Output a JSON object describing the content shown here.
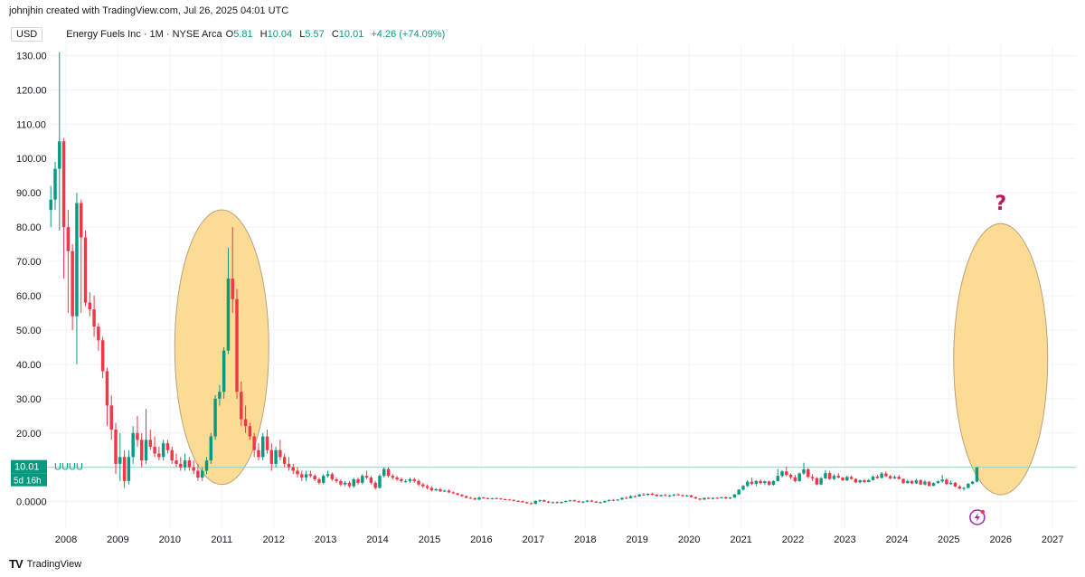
{
  "header": {
    "credit": "johnjhin created with TradingView.com, Jul 26, 2025 04:01 UTC"
  },
  "legend": {
    "currency": "USD",
    "symbol": "Energy Fuels Inc · 1M · NYSE Arca",
    "open_label": "O",
    "open": "5.81",
    "high_label": "H",
    "high": "10.04",
    "low_label": "L",
    "low": "5.57",
    "close_label": "C",
    "close": "10.01",
    "change": "+4.26 (+74.09%)"
  },
  "price_tag": {
    "value": "10.01",
    "ticker": "UUUU",
    "countdown": "5d 16h"
  },
  "annotations": {
    "question_mark": "?"
  },
  "footer": {
    "brand": "TradingView",
    "logo_icon": "tradingview-logo-icon"
  },
  "colors": {
    "up": "#089981",
    "down": "#f23645",
    "highlight": "#fbd27a",
    "question": "#c2185b",
    "lightning": "#9c27b0"
  },
  "chart_data": {
    "type": "candlestick",
    "interval": "1M",
    "y_tick_labels": [
      "0.0000",
      "10.00",
      "20.00",
      "30.00",
      "40.00",
      "50.00",
      "60.00",
      "70.00",
      "80.00",
      "90.00",
      "100.00",
      "110.00",
      "120.00",
      "130.00"
    ],
    "ylim": [
      -8,
      133
    ],
    "x_tick_labels": [
      "2008",
      "2009",
      "2010",
      "2011",
      "2012",
      "2013",
      "2014",
      "2015",
      "2016",
      "2017",
      "2018",
      "2019",
      "2020",
      "2021",
      "2022",
      "2023",
      "2024",
      "2025",
      "2026",
      "2027"
    ],
    "xlim": [
      2007.6,
      2027.45
    ],
    "last_price": 10.01,
    "highlights": [
      {
        "x_center": 2011.0,
        "y_low": 5,
        "y_high": 85
      },
      {
        "x_center": 2026.0,
        "y_low": 2,
        "y_high": 81
      }
    ],
    "candles": [
      [
        "2007-09",
        85,
        92,
        80,
        88
      ],
      [
        "2007-10",
        88,
        99,
        85,
        97
      ],
      [
        "2007-11",
        97,
        131,
        79,
        105
      ],
      [
        "2007-12",
        105,
        106,
        65,
        80
      ],
      [
        "2008-01",
        80,
        85,
        55,
        73
      ],
      [
        "2008-02",
        73,
        75,
        50,
        54
      ],
      [
        "2008-03",
        54,
        90,
        40,
        87
      ],
      [
        "2008-04",
        87,
        88,
        55,
        77
      ],
      [
        "2008-05",
        77,
        79,
        57,
        58
      ],
      [
        "2008-06",
        58,
        61,
        54,
        56
      ],
      [
        "2008-07",
        56,
        60,
        48,
        51
      ],
      [
        "2008-08",
        51,
        52,
        44,
        47
      ],
      [
        "2008-09",
        47,
        48,
        36,
        38
      ],
      [
        "2008-10",
        38,
        39,
        22,
        28
      ],
      [
        "2008-11",
        28,
        31,
        18,
        21
      ],
      [
        "2008-12",
        21,
        23,
        8,
        11
      ],
      [
        "2009-01",
        11,
        20,
        6,
        13
      ],
      [
        "2009-02",
        13,
        15,
        4,
        6
      ],
      [
        "2009-03",
        6,
        15,
        5,
        13
      ],
      [
        "2009-04",
        13,
        22,
        11,
        20
      ],
      [
        "2009-05",
        20,
        25,
        16,
        18
      ],
      [
        "2009-06",
        18,
        20,
        10,
        12
      ],
      [
        "2009-07",
        12,
        27,
        11,
        18
      ],
      [
        "2009-08",
        18,
        21,
        15,
        16
      ],
      [
        "2009-09",
        16,
        19,
        13,
        14
      ],
      [
        "2009-10",
        14,
        16,
        12,
        13
      ],
      [
        "2009-11",
        13,
        18,
        12,
        17
      ],
      [
        "2009-12",
        17,
        18,
        14,
        15
      ],
      [
        "2010-01",
        15,
        16,
        11,
        12
      ],
      [
        "2010-02",
        12,
        14,
        10,
        11
      ],
      [
        "2010-03",
        11,
        13,
        9,
        10
      ],
      [
        "2010-04",
        10,
        14,
        9,
        12
      ],
      [
        "2010-05",
        12,
        13,
        9,
        10
      ],
      [
        "2010-06",
        10,
        12,
        8,
        9
      ],
      [
        "2010-07",
        9,
        11,
        6,
        7
      ],
      [
        "2010-08",
        7,
        10,
        6,
        9
      ],
      [
        "2010-09",
        9,
        13,
        8,
        12
      ],
      [
        "2010-10",
        12,
        20,
        11,
        19
      ],
      [
        "2010-11",
        19,
        31,
        18,
        30
      ],
      [
        "2010-12",
        30,
        34,
        28,
        32
      ],
      [
        "2011-01",
        32,
        45,
        30,
        44
      ],
      [
        "2011-02",
        44,
        74,
        43,
        65
      ],
      [
        "2011-03",
        65,
        80,
        55,
        59
      ],
      [
        "2011-04",
        59,
        62,
        30,
        32
      ],
      [
        "2011-05",
        32,
        35,
        22,
        24
      ],
      [
        "2011-06",
        24,
        28,
        20,
        22
      ],
      [
        "2011-07",
        22,
        23,
        18,
        19
      ],
      [
        "2011-08",
        19,
        20,
        13,
        15
      ],
      [
        "2011-09",
        15,
        17,
        12,
        13
      ],
      [
        "2011-10",
        13,
        20,
        12,
        19
      ],
      [
        "2011-11",
        19,
        21,
        14,
        15
      ],
      [
        "2011-12",
        15,
        17,
        9,
        11
      ],
      [
        "2012-01",
        11,
        16,
        10,
        15
      ],
      [
        "2012-02",
        15,
        18,
        12,
        13
      ],
      [
        "2012-03",
        13,
        14,
        10,
        11
      ],
      [
        "2012-04",
        11,
        13,
        9,
        10
      ],
      [
        "2012-05",
        10,
        11,
        8,
        9
      ],
      [
        "2012-06",
        9,
        10,
        7,
        8
      ],
      [
        "2012-07",
        8,
        9,
        6,
        7
      ],
      [
        "2012-08",
        7,
        9,
        6,
        8
      ],
      [
        "2012-09",
        8,
        9,
        7,
        7.5
      ],
      [
        "2012-10",
        7.5,
        8,
        6,
        6.5
      ],
      [
        "2012-11",
        6.5,
        7,
        5,
        5.5
      ],
      [
        "2012-12",
        5.5,
        8,
        5,
        7.5
      ],
      [
        "2013-01",
        7.5,
        9,
        7,
        8
      ],
      [
        "2013-02",
        8,
        8.5,
        6,
        6.5
      ],
      [
        "2013-03",
        6.5,
        7,
        5.5,
        6
      ],
      [
        "2013-04",
        6,
        6.5,
        4.5,
        5
      ],
      [
        "2013-05",
        5,
        6,
        4.5,
        5.5
      ],
      [
        "2013-06",
        5.5,
        6,
        4,
        4.5
      ],
      [
        "2013-07",
        4.5,
        7,
        4,
        6.5
      ],
      [
        "2013-08",
        6.5,
        7,
        5,
        5.5
      ],
      [
        "2013-09",
        5.5,
        8,
        5,
        7.5
      ],
      [
        "2013-10",
        7.5,
        9,
        6.5,
        7
      ],
      [
        "2013-11",
        7,
        7.5,
        5,
        5.5
      ],
      [
        "2013-12",
        5.5,
        6,
        3.5,
        4
      ],
      [
        "2014-01",
        4,
        8,
        3.8,
        7.5
      ],
      [
        "2014-02",
        7.5,
        10,
        7,
        9.5
      ],
      [
        "2014-03",
        9.5,
        10,
        7,
        7.5
      ],
      [
        "2014-04",
        7.5,
        8,
        6.5,
        7
      ],
      [
        "2014-05",
        7,
        7.5,
        6,
        6.5
      ],
      [
        "2014-06",
        6.5,
        7,
        5.5,
        6
      ],
      [
        "2014-07",
        6,
        6.5,
        5.5,
        6
      ],
      [
        "2014-08",
        6,
        7,
        5.5,
        6.5
      ],
      [
        "2014-09",
        6.5,
        7,
        5.5,
        6
      ],
      [
        "2014-10",
        6,
        6.5,
        4.5,
        5
      ],
      [
        "2014-11",
        5,
        5.5,
        4,
        4.5
      ],
      [
        "2014-12",
        4.5,
        5,
        3.5,
        4
      ],
      [
        "2015-01",
        4,
        4.5,
        3,
        3.3
      ],
      [
        "2015-02",
        3.3,
        4,
        3,
        3.6
      ],
      [
        "2015-03",
        3.6,
        4,
        2.8,
        3
      ],
      [
        "2015-04",
        3,
        3.5,
        2.8,
        3.2
      ],
      [
        "2015-05",
        3.2,
        3.5,
        2.5,
        2.7
      ],
      [
        "2015-06",
        2.7,
        3,
        2.2,
        2.4
      ],
      [
        "2015-07",
        2.4,
        2.6,
        1.8,
        2
      ],
      [
        "2015-08",
        2,
        2.2,
        1.5,
        1.6
      ],
      [
        "2015-09",
        1.6,
        1.8,
        1,
        1.1
      ],
      [
        "2015-10",
        1.1,
        1.4,
        0.8,
        1
      ],
      [
        "2015-11",
        1,
        1.2,
        0.5,
        0.6
      ],
      [
        "2015-12",
        0.6,
        1.5,
        0.4,
        1.2
      ],
      [
        "2016-01",
        1.2,
        1.4,
        0.8,
        1
      ],
      [
        "2016-02",
        1,
        1.2,
        0.7,
        0.8
      ],
      [
        "2016-03",
        0.8,
        1.1,
        0.6,
        1
      ],
      [
        "2016-04",
        1,
        1.2,
        0.8,
        0.9
      ],
      [
        "2016-05",
        0.9,
        1.1,
        0.6,
        0.7
      ],
      [
        "2016-06",
        0.7,
        0.9,
        0.5,
        0.6
      ],
      [
        "2016-07",
        0.6,
        0.8,
        0.4,
        0.5
      ],
      [
        "2016-08",
        0.5,
        0.6,
        0.1,
        0.2
      ],
      [
        "2016-09",
        0.2,
        0.4,
        0,
        0.1
      ],
      [
        "2016-10",
        0.1,
        0.3,
        -0.3,
        -0.2
      ],
      [
        "2016-11",
        -0.2,
        0,
        -0.6,
        -0.5
      ],
      [
        "2016-12",
        -0.5,
        -0.2,
        -0.8,
        -0.6
      ],
      [
        "2017-01",
        -0.6,
        0.4,
        -0.8,
        0.2
      ],
      [
        "2017-02",
        0.2,
        0.6,
        -0.2,
        0.4
      ],
      [
        "2017-03",
        0.4,
        0.6,
        -0.1,
        0
      ],
      [
        "2017-04",
        0,
        0.2,
        -0.4,
        -0.3
      ],
      [
        "2017-05",
        -0.3,
        0,
        -0.5,
        -0.2
      ],
      [
        "2017-06",
        -0.2,
        0.1,
        -0.5,
        -0.4
      ],
      [
        "2017-07",
        -0.4,
        0,
        -0.6,
        -0.1
      ],
      [
        "2017-08",
        -0.1,
        0.3,
        -0.3,
        0.2
      ],
      [
        "2017-09",
        0.2,
        0.5,
        0,
        0.4
      ],
      [
        "2017-10",
        0.4,
        0.6,
        0,
        0.1
      ],
      [
        "2017-11",
        0.1,
        0.3,
        -0.3,
        -0.2
      ],
      [
        "2017-12",
        -0.2,
        0.1,
        -0.5,
        0
      ],
      [
        "2018-01",
        0,
        0.4,
        -0.2,
        0.3
      ],
      [
        "2018-02",
        0.3,
        0.5,
        -0.1,
        0
      ],
      [
        "2018-03",
        0,
        0.2,
        -0.4,
        -0.3
      ],
      [
        "2018-04",
        -0.3,
        0,
        -0.5,
        -0.2
      ],
      [
        "2018-05",
        -0.2,
        0.3,
        -0.3,
        0.2
      ],
      [
        "2018-06",
        0.2,
        0.6,
        0,
        0.5
      ],
      [
        "2018-07",
        0.5,
        0.8,
        0.2,
        0.4
      ],
      [
        "2018-08",
        0.4,
        0.7,
        0.2,
        0.6
      ],
      [
        "2018-09",
        0.6,
        1.2,
        0.5,
        1.1
      ],
      [
        "2018-10",
        1.1,
        1.5,
        0.8,
        1
      ],
      [
        "2018-11",
        1,
        1.8,
        0.9,
        1.6
      ],
      [
        "2018-12",
        1.6,
        1.9,
        1.2,
        1.5
      ],
      [
        "2019-01",
        1.5,
        2.2,
        1.4,
        2.1
      ],
      [
        "2019-02",
        2.1,
        2.5,
        1.8,
        2
      ],
      [
        "2019-03",
        2,
        2.4,
        1.7,
        2.3
      ],
      [
        "2019-04",
        2.3,
        2.6,
        1.9,
        2
      ],
      [
        "2019-05",
        2,
        2.2,
        1.5,
        1.6
      ],
      [
        "2019-06",
        1.6,
        2,
        1.4,
        1.9
      ],
      [
        "2019-07",
        1.9,
        2.3,
        1.6,
        1.7
      ],
      [
        "2019-08",
        1.7,
        2,
        1.4,
        1.8
      ],
      [
        "2019-09",
        1.8,
        2.2,
        1.5,
        2.1
      ],
      [
        "2019-10",
        2.1,
        2.4,
        1.8,
        1.9
      ],
      [
        "2019-11",
        1.9,
        2.1,
        1.5,
        1.6
      ],
      [
        "2019-12",
        1.6,
        2,
        1.4,
        1.8
      ],
      [
        "2020-01",
        1.8,
        2,
        1.2,
        1.3
      ],
      [
        "2020-02",
        1.3,
        1.5,
        0.8,
        0.9
      ],
      [
        "2020-03",
        0.9,
        1,
        0.3,
        0.6
      ],
      [
        "2020-04",
        0.6,
        1.2,
        0.5,
        1.1
      ],
      [
        "2020-05",
        1.1,
        1.3,
        0.7,
        0.8
      ],
      [
        "2020-06",
        0.8,
        1.2,
        0.6,
        1.1
      ],
      [
        "2020-07",
        1.1,
        1.3,
        0.8,
        1
      ],
      [
        "2020-08",
        1,
        1.4,
        0.9,
        1.3
      ],
      [
        "2020-09",
        1.3,
        1.5,
        0.8,
        0.9
      ],
      [
        "2020-10",
        0.9,
        1.3,
        0.7,
        1.2
      ],
      [
        "2020-11",
        1.2,
        2.2,
        1.1,
        2.1
      ],
      [
        "2020-12",
        2.1,
        3.6,
        2,
        3.5
      ],
      [
        "2021-01",
        3.5,
        4.8,
        3.2,
        4.6
      ],
      [
        "2021-02",
        4.6,
        6.2,
        4.2,
        5.8
      ],
      [
        "2021-03",
        5.8,
        7,
        4.8,
        5.2
      ],
      [
        "2021-04",
        5.2,
        6.3,
        4.5,
        6
      ],
      [
        "2021-05",
        6,
        6.5,
        5,
        5.4
      ],
      [
        "2021-06",
        5.4,
        6.2,
        4.8,
        5.9
      ],
      [
        "2021-07",
        5.9,
        6.1,
        4.6,
        4.9
      ],
      [
        "2021-08",
        4.9,
        6.2,
        4.7,
        6
      ],
      [
        "2021-09",
        6,
        9.5,
        5.8,
        7.5
      ],
      [
        "2021-10",
        7.5,
        9.2,
        7,
        8.8
      ],
      [
        "2021-11",
        8.8,
        10.2,
        7.3,
        7.8
      ],
      [
        "2021-12",
        7.8,
        8.2,
        6.5,
        7.1
      ],
      [
        "2022-01",
        7.1,
        7.8,
        5.6,
        6
      ],
      [
        "2022-02",
        6,
        8.5,
        5.8,
        8.2
      ],
      [
        "2022-03",
        8.2,
        11.3,
        7.8,
        9.4
      ],
      [
        "2022-04",
        9.4,
        9.8,
        6.8,
        7.2
      ],
      [
        "2022-05",
        7.2,
        8,
        6,
        6.8
      ],
      [
        "2022-06",
        6.8,
        7.2,
        4.8,
        5
      ],
      [
        "2022-07",
        5,
        7.2,
        4.8,
        6.8
      ],
      [
        "2022-08",
        6.8,
        9.2,
        6.6,
        8.3
      ],
      [
        "2022-09",
        8.3,
        9,
        6.3,
        6.6
      ],
      [
        "2022-10",
        6.6,
        8,
        6.3,
        7.5
      ],
      [
        "2022-11",
        7.5,
        8.3,
        6.8,
        7
      ],
      [
        "2022-12",
        7,
        7.2,
        6,
        6.2
      ],
      [
        "2023-01",
        6.2,
        7.6,
        6,
        7.2
      ],
      [
        "2023-02",
        7.2,
        7.6,
        6.4,
        6.6
      ],
      [
        "2023-03",
        6.6,
        6.8,
        5.4,
        5.6
      ],
      [
        "2023-04",
        5.6,
        6.4,
        5.3,
        6.2
      ],
      [
        "2023-05",
        6.2,
        6.6,
        5.4,
        5.7
      ],
      [
        "2023-06",
        5.7,
        6.6,
        5.6,
        6.3
      ],
      [
        "2023-07",
        6.3,
        7.6,
        6.1,
        7.3
      ],
      [
        "2023-08",
        7.3,
        7.8,
        6.6,
        6.9
      ],
      [
        "2023-09",
        6.9,
        8.6,
        6.8,
        8.2
      ],
      [
        "2023-10",
        8.2,
        8.8,
        7.2,
        7.4
      ],
      [
        "2023-11",
        7.4,
        7.8,
        6.5,
        6.8
      ],
      [
        "2023-12",
        6.8,
        7.6,
        6.6,
        7.2
      ],
      [
        "2024-01",
        7.2,
        7.8,
        6.4,
        6.6
      ],
      [
        "2024-02",
        6.6,
        6.8,
        5.2,
        5.4
      ],
      [
        "2024-03",
        5.4,
        6.4,
        5.2,
        6
      ],
      [
        "2024-04",
        6,
        6.3,
        5.1,
        5.3
      ],
      [
        "2024-05",
        5.3,
        6.6,
        5.2,
        6.2
      ],
      [
        "2024-06",
        6.2,
        6.5,
        4.8,
        5
      ],
      [
        "2024-07",
        5,
        6.3,
        4.7,
        5.8
      ],
      [
        "2024-08",
        5.8,
        6,
        4.4,
        4.6
      ],
      [
        "2024-09",
        4.6,
        5.6,
        4.5,
        5.4
      ],
      [
        "2024-10",
        5.4,
        6.2,
        5.2,
        5.9
      ],
      [
        "2024-11",
        5.9,
        7.8,
        5.5,
        6.4
      ],
      [
        "2024-12",
        6.4,
        6.8,
        4.8,
        5.1
      ],
      [
        "2025-01",
        5.1,
        6.2,
        4.9,
        5.5
      ],
      [
        "2025-02",
        5.5,
        5.7,
        4.2,
        4.4
      ],
      [
        "2025-03",
        4.4,
        4.8,
        3.6,
        3.8
      ],
      [
        "2025-04",
        3.8,
        4.3,
        3.2,
        4
      ],
      [
        "2025-05",
        4,
        5.4,
        3.8,
        5.2
      ],
      [
        "2025-06",
        5.2,
        6,
        5,
        5.81
      ],
      [
        "2025-07",
        5.81,
        10.04,
        5.57,
        10.01
      ]
    ]
  }
}
